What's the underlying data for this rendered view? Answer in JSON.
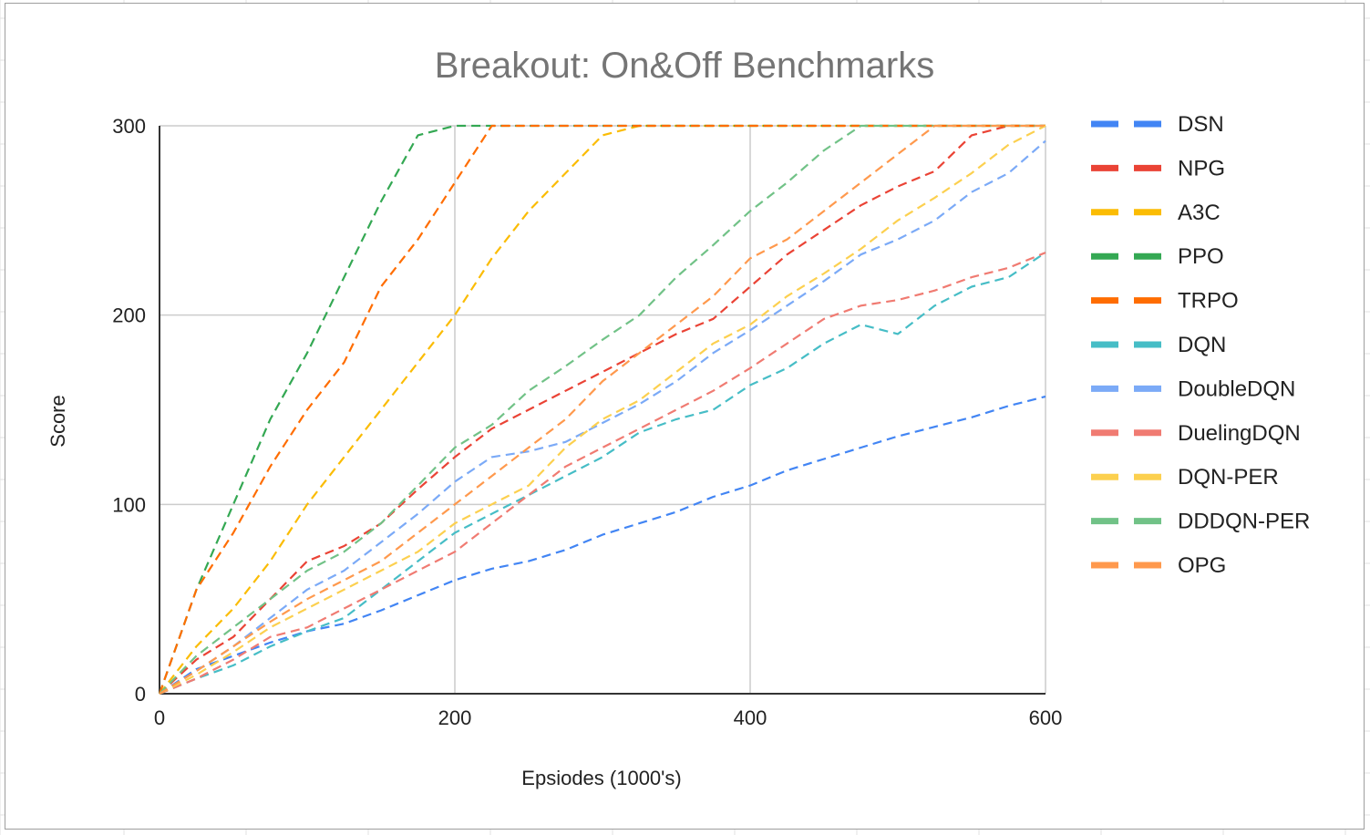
{
  "chart_data": {
    "type": "line",
    "title": "Breakout: On&Off Benchmarks",
    "xlabel": "Epsiodes (1000's)",
    "ylabel": "Score",
    "xlim": [
      0,
      600
    ],
    "ylim": [
      0,
      300
    ],
    "x_ticks": [
      0,
      200,
      400,
      600
    ],
    "y_ticks": [
      0,
      100,
      200,
      300
    ],
    "grid": true,
    "legend_position": "right",
    "line_style": "dashed",
    "x": [
      0,
      25,
      50,
      75,
      100,
      125,
      150,
      175,
      200,
      225,
      250,
      275,
      300,
      325,
      350,
      375,
      400,
      425,
      450,
      475,
      500,
      525,
      550,
      575,
      600
    ],
    "series": [
      {
        "name": "DSN",
        "color": "#4285F4",
        "values": [
          0,
          13,
          20,
          27,
          33,
          37,
          44,
          52,
          60,
          66,
          70,
          76,
          84,
          90,
          96,
          104,
          110,
          118,
          124,
          130,
          136,
          141,
          146,
          152,
          157
        ]
      },
      {
        "name": "NPG",
        "color": "#EA4335",
        "values": [
          0,
          18,
          30,
          50,
          70,
          78,
          90,
          108,
          125,
          140,
          150,
          160,
          170,
          180,
          190,
          198,
          215,
          232,
          245,
          258,
          268,
          276,
          295,
          300,
          300
        ]
      },
      {
        "name": "A3C",
        "color": "#FBBC04",
        "values": [
          0,
          25,
          45,
          70,
          100,
          125,
          150,
          175,
          200,
          230,
          255,
          275,
          295,
          300,
          300,
          300,
          300,
          300,
          300,
          300,
          300,
          300,
          300,
          300,
          300
        ]
      },
      {
        "name": "PPO",
        "color": "#34A853",
        "values": [
          0,
          55,
          100,
          145,
          180,
          220,
          260,
          295,
          300,
          300,
          300,
          300,
          300,
          300,
          300,
          300,
          300,
          300,
          300,
          300,
          300,
          300,
          300,
          300,
          300
        ]
      },
      {
        "name": "TRPO",
        "color": "#FF6D01",
        "values": [
          0,
          55,
          85,
          120,
          150,
          175,
          215,
          240,
          270,
          300,
          300,
          300,
          300,
          300,
          300,
          300,
          300,
          300,
          300,
          300,
          300,
          300,
          300,
          300,
          300
        ]
      },
      {
        "name": "DQN",
        "color": "#46BDC6",
        "values": [
          0,
          8,
          15,
          25,
          33,
          40,
          55,
          70,
          85,
          95,
          105,
          115,
          125,
          138,
          145,
          150,
          163,
          172,
          185,
          195,
          190,
          205,
          215,
          220,
          233
        ]
      },
      {
        "name": "DoubleDQN",
        "color": "#7BAAF7",
        "values": [
          0,
          12,
          25,
          40,
          55,
          65,
          80,
          95,
          112,
          125,
          128,
          133,
          143,
          153,
          165,
          180,
          192,
          205,
          218,
          232,
          240,
          250,
          265,
          275,
          292
        ]
      },
      {
        "name": "DuelingDQN",
        "color": "#F07B72",
        "values": [
          0,
          8,
          18,
          30,
          35,
          45,
          55,
          65,
          75,
          90,
          105,
          120,
          130,
          140,
          150,
          160,
          172,
          185,
          198,
          205,
          208,
          213,
          220,
          225,
          233
        ]
      },
      {
        "name": "DQN-PER",
        "color": "#FCD04F",
        "values": [
          0,
          10,
          22,
          35,
          45,
          55,
          65,
          75,
          90,
          100,
          110,
          130,
          145,
          155,
          170,
          185,
          195,
          210,
          222,
          235,
          250,
          262,
          275,
          290,
          300
        ]
      },
      {
        "name": "DDDQN-PER",
        "color": "#71C287",
        "values": [
          0,
          20,
          35,
          50,
          65,
          75,
          90,
          110,
          130,
          142,
          160,
          173,
          187,
          200,
          220,
          237,
          255,
          270,
          287,
          300,
          300,
          300,
          300,
          300,
          300
        ]
      },
      {
        "name": "OPG",
        "color": "#FF994D",
        "values": [
          0,
          12,
          25,
          38,
          50,
          60,
          70,
          85,
          100,
          115,
          130,
          145,
          165,
          180,
          195,
          210,
          230,
          240,
          255,
          270,
          285,
          300,
          300,
          300,
          300
        ]
      }
    ]
  }
}
